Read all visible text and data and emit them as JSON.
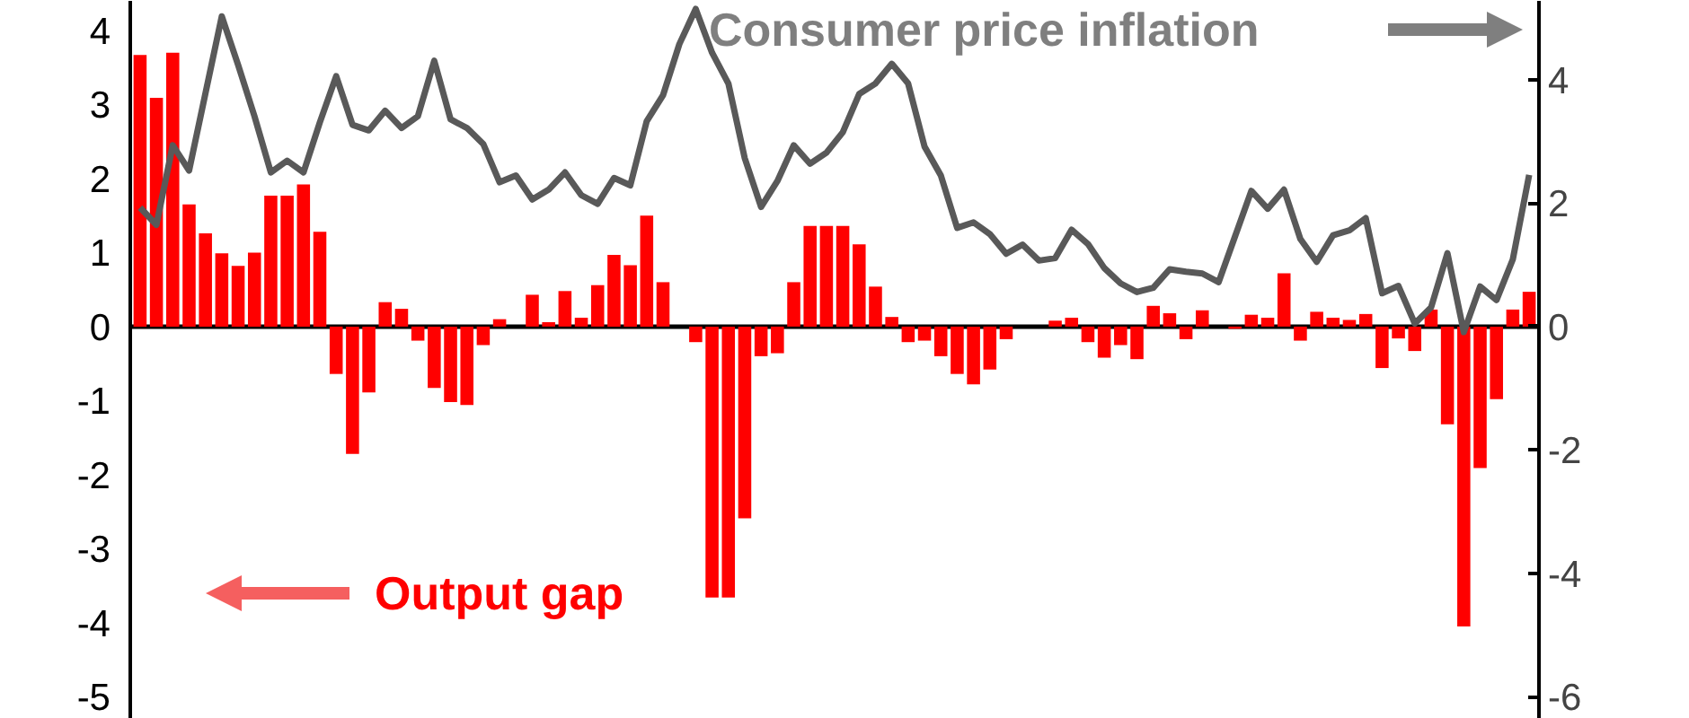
{
  "chart_data": {
    "type": "bar",
    "categories": [
      null,
      null,
      null,
      null,
      null,
      null,
      null,
      null,
      null,
      null,
      null,
      null,
      null,
      null,
      null,
      null,
      null,
      null,
      null,
      null,
      null,
      null,
      null,
      null,
      null,
      null,
      null,
      null,
      null,
      null,
      null,
      null,
      null,
      null,
      null,
      null,
      null,
      null,
      null,
      null,
      null,
      null,
      null,
      null,
      null,
      null,
      null,
      null,
      null,
      null,
      null,
      null,
      null,
      null,
      null,
      null,
      null,
      null,
      null,
      null,
      null,
      null,
      null,
      null,
      null,
      null,
      null,
      null,
      null,
      null,
      null,
      null,
      null,
      null,
      null,
      null,
      null,
      null,
      null,
      null,
      null,
      null,
      null,
      null,
      null,
      null
    ],
    "series": [
      {
        "name": "Output gap",
        "color": "#ff0000",
        "values": [
          3.67,
          3.09,
          3.7,
          1.65,
          1.26,
          0.99,
          0.82,
          1.0,
          1.77,
          1.77,
          1.92,
          1.28,
          -0.64,
          -1.72,
          -0.89,
          0.33,
          0.24,
          -0.19,
          -0.83,
          -1.02,
          -1.06,
          -0.25,
          0.1,
          0.0,
          0.43,
          0.06,
          0.48,
          0.12,
          0.56,
          0.97,
          0.83,
          1.5,
          0.6,
          0.0,
          -0.21,
          -3.66,
          -3.66,
          -2.59,
          -0.4,
          -0.36,
          0.6,
          1.36,
          1.36,
          1.36,
          1.11,
          0.54,
          0.13,
          -0.21,
          -0.19,
          -0.4,
          -0.64,
          -0.78,
          -0.58,
          -0.17,
          0.0,
          0.0,
          0.08,
          0.12,
          -0.21,
          -0.42,
          -0.25,
          -0.44,
          0.28,
          0.18,
          -0.17,
          0.22,
          0.0,
          -0.03,
          0.16,
          0.12,
          0.72,
          -0.19,
          0.2,
          0.12,
          0.09,
          0.17,
          -0.56,
          -0.16,
          -0.33,
          0.23,
          -1.32,
          -4.05,
          -1.91,
          -0.98,
          0.23,
          0.47
        ]
      },
      {
        "name": "Consumer price inflation",
        "type": "line",
        "axis": "y2",
        "color": "#595959",
        "values": [
          1.93,
          1.65,
          2.94,
          2.53,
          3.78,
          5.03,
          4.24,
          3.41,
          2.5,
          2.69,
          2.5,
          3.31,
          4.06,
          3.27,
          3.18,
          3.5,
          3.22,
          3.41,
          4.31,
          3.36,
          3.22,
          2.96,
          2.34,
          2.45,
          2.06,
          2.22,
          2.5,
          2.13,
          1.99,
          2.41,
          2.29,
          3.33,
          3.75,
          4.58,
          5.15,
          4.44,
          3.94,
          2.73,
          1.94,
          2.36,
          2.94,
          2.64,
          2.82,
          3.15,
          3.77,
          3.94,
          4.26,
          3.94,
          2.92,
          2.45,
          1.6,
          1.69,
          1.5,
          1.18,
          1.33,
          1.07,
          1.11,
          1.57,
          1.34,
          0.95,
          0.7,
          0.56,
          0.63,
          0.93,
          0.89,
          0.86,
          0.72,
          1.46,
          2.2,
          1.91,
          2.22,
          1.42,
          1.05,
          1.48,
          1.56,
          1.76,
          0.54,
          0.66,
          0.05,
          0.31,
          1.19,
          -0.09,
          0.65,
          0.43,
          1.09,
          2.46
        ]
      }
    ],
    "ylim": [
      -5.3,
      4.4
    ],
    "yticks": [
      -5,
      -4,
      -3,
      -2,
      -1,
      0,
      1,
      2,
      3,
      4
    ],
    "y2lim": [
      -6.36,
      5.28
    ],
    "y2ticks": [
      -6,
      -4,
      -2,
      0,
      2,
      4
    ],
    "ref_lines": [
      {
        "axis": "y",
        "value": 0,
        "color": "#000000"
      }
    ],
    "grid": false,
    "legend": "top left",
    "line_style": "solid",
    "marker": "none",
    "tick_labels": "y"
  }
}
